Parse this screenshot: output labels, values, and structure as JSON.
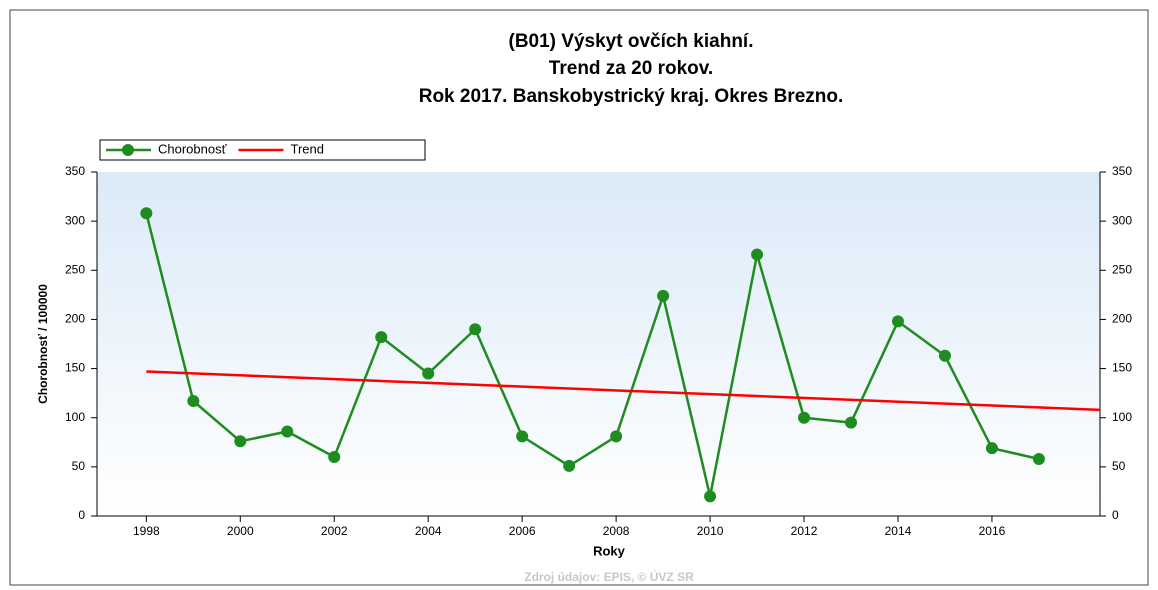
{
  "chart_data": {
    "type": "line",
    "title": [
      "(B01) Výskyt ovčích kiahní.",
      "Trend za 20 rokov.",
      "Rok 2017. Banskobystrický kraj. Okres Brezno."
    ],
    "xlabel": "Roky",
    "ylabel": "Chorobnosť / 100000",
    "footer": "Zdroj údajov: EPIS, © ÚVZ SR",
    "x": [
      1998,
      1999,
      2000,
      2001,
      2002,
      2003,
      2004,
      2005,
      2006,
      2007,
      2008,
      2009,
      2010,
      2011,
      2012,
      2013,
      2014,
      2015,
      2016,
      2017
    ],
    "series": [
      {
        "name": "Chorobnosť",
        "color": "#1f8c1f",
        "markers": true,
        "values": [
          308,
          117,
          76,
          86,
          60,
          182,
          145,
          190,
          81,
          51,
          81,
          224,
          20,
          266,
          100,
          95,
          198,
          163,
          69,
          58
        ]
      },
      {
        "name": "Trend",
        "color": "#ff0000",
        "markers": false,
        "x": [
          1998,
          2018.3
        ],
        "values": [
          147,
          108
        ]
      }
    ],
    "xlim": [
      1996.95,
      2018.3
    ],
    "xticks": [
      1998,
      2000,
      2002,
      2004,
      2006,
      2008,
      2010,
      2012,
      2014,
      2016
    ],
    "ylim": [
      0,
      350
    ],
    "yticks": [
      0,
      50,
      100,
      150,
      200,
      250,
      300,
      350
    ],
    "right_axis": true,
    "legend": "top-left"
  }
}
